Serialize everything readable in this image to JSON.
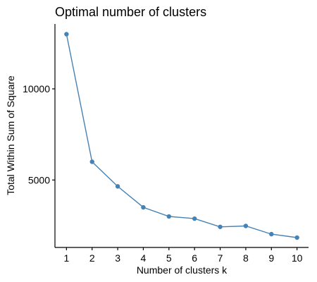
{
  "chart_data": {
    "type": "line",
    "title": "Optimal number of clusters",
    "xlabel": "Number of clusters k",
    "ylabel": "Total Within Sum of Square",
    "x": [
      1,
      2,
      3,
      4,
      5,
      6,
      7,
      8,
      9,
      10
    ],
    "values": [
      13000,
      6000,
      4650,
      3500,
      3000,
      2880,
      2430,
      2480,
      2030,
      1840
    ],
    "xticks": [
      "1",
      "2",
      "3",
      "4",
      "5",
      "6",
      "7",
      "8",
      "9",
      "10"
    ],
    "yticks": [
      5000,
      10000
    ],
    "ytick_labels": [
      "5000",
      "10000"
    ],
    "xlim": [
      0.55,
      10.45
    ],
    "ylim": [
      1300,
      13560
    ],
    "grid": false,
    "color": "#4682B4"
  }
}
